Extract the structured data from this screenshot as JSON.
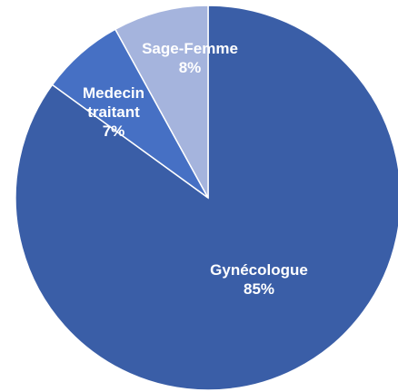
{
  "chart_data": {
    "type": "pie",
    "categories": [
      "Gynécologue",
      "Medecin traitant",
      "Sage-Femme"
    ],
    "values": [
      85,
      7,
      8
    ],
    "value_labels": [
      "85%",
      "7%",
      "8%"
    ],
    "colors": [
      "#3a5ea7",
      "#4670c4",
      "#a5b4dd"
    ]
  }
}
